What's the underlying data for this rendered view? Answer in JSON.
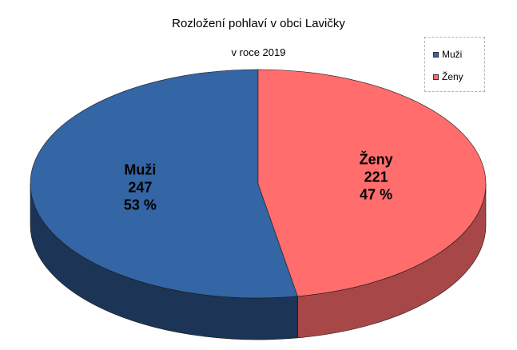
{
  "chart_data": {
    "type": "pie",
    "title": "Rozložení pohlaví v obci Lavičky",
    "subtitle": "v roce 2019",
    "legend_position": "top-right",
    "slices": [
      {
        "name": "Muži",
        "value": 247,
        "percent_label": "53 %",
        "color": "#3465a4",
        "side_color": "#1c3556"
      },
      {
        "name": "Ženy",
        "value": 221,
        "percent_label": "47 %",
        "color": "#ff6d6d",
        "side_color": "#a84747"
      }
    ]
  }
}
